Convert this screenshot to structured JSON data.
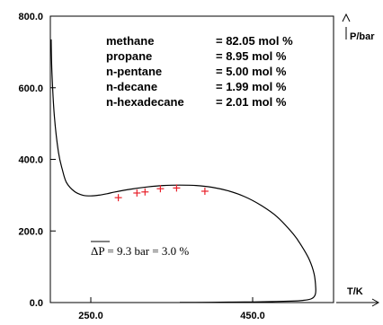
{
  "chart_data": {
    "type": "scatter",
    "xlabel": "T/K",
    "ylabel": "P/bar",
    "xlim": [
      200,
      550
    ],
    "ylim": [
      0,
      800
    ],
    "x_ticks": [
      {
        "value": 250,
        "label": "250.0"
      },
      {
        "value": 450,
        "label": "450.0"
      }
    ],
    "y_ticks": [
      {
        "value": 0,
        "label": "0.0"
      },
      {
        "value": 200,
        "label": "200.0"
      },
      {
        "value": 400,
        "label": "400.0"
      },
      {
        "value": 600,
        "label": "600.0"
      },
      {
        "value": 800,
        "label": "800.0"
      }
    ],
    "composition": [
      {
        "name": "methane",
        "value": "= 82.05 mol %"
      },
      {
        "name": "propane",
        "value": "= 8.95 mol %"
      },
      {
        "name": "n-pentane",
        "value": "= 5.00 mol %"
      },
      {
        "name": "n-decane",
        "value": "= 1.99 mol %"
      },
      {
        "name": "n-hexadecane",
        "value": "= 2.01 mol %"
      }
    ],
    "annotation": {
      "overbar_part": "ΔP",
      "rest": " = 9.3 bar = 3.0 %"
    },
    "series": [
      {
        "style": "line",
        "color": "#000000",
        "x": [
          201,
          202,
          205,
          210,
          215,
          220,
          230,
          240,
          250,
          260,
          270,
          280,
          300,
          320,
          340,
          360,
          380,
          400,
          420,
          440,
          460,
          480,
          500,
          510,
          520,
          526,
          528,
          527,
          522,
          512,
          498,
          470,
          440,
          410,
          380,
          360
        ],
        "y": [
          735,
          640,
          520,
          420,
          370,
          335,
          310,
          300,
          298,
          300,
          304,
          309,
          317,
          323,
          327,
          328,
          327,
          322,
          312,
          296,
          272,
          240,
          192,
          160,
          120,
          80,
          40,
          20,
          10,
          6,
          4,
          2.5,
          1.5,
          1,
          0.5,
          0.2
        ]
      },
      {
        "style": "marker",
        "marker": "+",
        "color": "#e8202a",
        "x": [
          284,
          307,
          317,
          336,
          356,
          391
        ],
        "y": [
          293,
          306,
          309,
          318,
          320,
          311
        ]
      }
    ]
  }
}
